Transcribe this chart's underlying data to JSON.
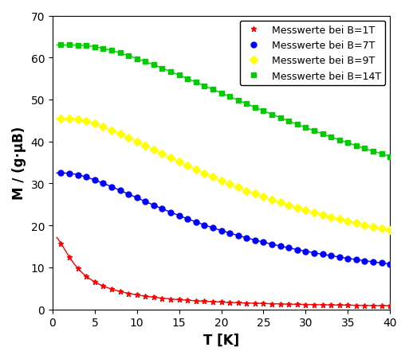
{
  "title": "",
  "xlabel": "T [K]",
  "ylabel": "M / (g·μB)",
  "xlim": [
    0,
    40
  ],
  "ylim": [
    0,
    70
  ],
  "xticks": [
    0,
    5,
    10,
    15,
    20,
    25,
    30,
    35,
    40
  ],
  "yticks": [
    0,
    10,
    20,
    30,
    40,
    50,
    60,
    70
  ],
  "series": [
    {
      "label": "Messwerte bei B=1T",
      "color": "#ff0000",
      "marker": "*",
      "B": 1,
      "M_sat": 17.5
    },
    {
      "label": "Messwerte bei B=7T",
      "color": "#0000ff",
      "marker": "o",
      "B": 7,
      "M_sat": 32.5
    },
    {
      "label": "Messwerte bei B=9T",
      "color": "#ffff00",
      "marker": "D",
      "B": 9,
      "M_sat": 45.5
    },
    {
      "label": "Messwerte bei B=14T",
      "color": "#00cc00",
      "marker": "s",
      "B": 14,
      "M_sat": 63.0
    }
  ],
  "J": 3.5,
  "g": 2.0,
  "mu_B_over_kB": 0.6717,
  "background_color": "#ffffff",
  "legend_fontsize": 9,
  "axis_fontsize": 12,
  "tick_fontsize": 10,
  "markersize": 5,
  "linewidth": 1.0
}
